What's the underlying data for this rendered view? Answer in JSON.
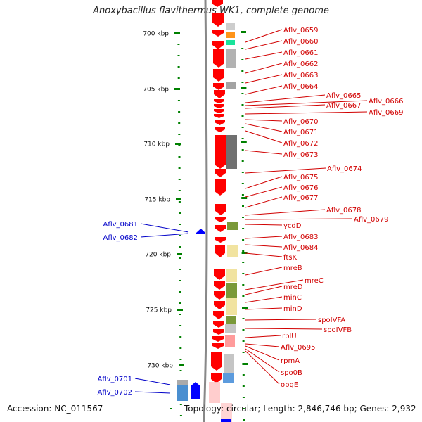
{
  "title": "Anoxybacillus flavithermus WK1, complete genome",
  "footer": {
    "accession": "Accession: NC_011567",
    "topology": "Topology: circular; Length: 2,846,746 bp; Genes: 2,932"
  },
  "colors": {
    "forward_gene": "#ff0000",
    "reverse_gene": "#0000ff",
    "backbone": "#888888",
    "tick": "#008000",
    "label_forward": "#d10000",
    "label_reverse": "#0000c8",
    "scale_text": "#111111"
  },
  "scale": [
    {
      "label": "700 kbp"
    },
    {
      "label": "705 kbp"
    },
    {
      "label": "710 kbp"
    },
    {
      "label": "715 kbp"
    },
    {
      "label": "720 kbp"
    },
    {
      "label": "725 kbp"
    },
    {
      "label": "730 kbp"
    }
  ],
  "right_labels": [
    "Aflv_0659",
    "Aflv_0660",
    "Aflv_0661",
    "Aflv_0662",
    "Aflv_0663",
    "Aflv_0664",
    "Aflv_0665",
    "Aflv_0666",
    "Aflv_0667",
    "Aflv_0669",
    "Aflv_0670",
    "Aflv_0671",
    "Aflv_0672",
    "Aflv_0673",
    "Aflv_0674",
    "Aflv_0675",
    "Aflv_0676",
    "Aflv_0677",
    "Aflv_0678",
    "Aflv_0679",
    "ycdD",
    "Aflv_0683",
    "Aflv_0684",
    "ftsK",
    "mreB",
    "mreC",
    "mreD",
    "minC",
    "minD",
    "spoIVFA",
    "spoIVFB",
    "rplU",
    "Aflv_0695",
    "rpmA",
    "spo0B",
    "obgE"
  ],
  "left_labels": [
    "Aflv_0681",
    "Aflv_0682",
    "Aflv_0701",
    "Aflv_0702"
  ]
}
